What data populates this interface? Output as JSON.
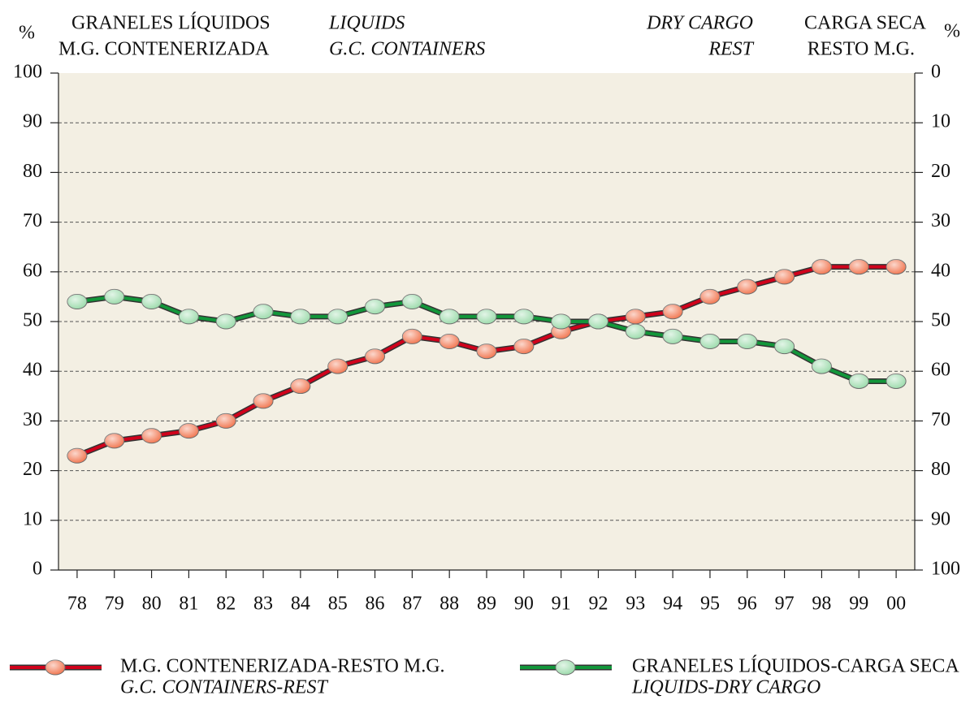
{
  "chart_data": {
    "type": "line",
    "y_label": "%",
    "y2_label": "%",
    "header_left": [
      [
        "GRANELES LÍQUIDOS",
        "LIQUIDS"
      ],
      [
        "M.G. CONTENERIZADA",
        "G.C. CONTAINERS"
      ]
    ],
    "header_right": [
      [
        "DRY CARGO",
        "CARGA SECA"
      ],
      [
        "REST",
        "RESTO M.G."
      ]
    ],
    "categories": [
      "78",
      "79",
      "80",
      "81",
      "82",
      "83",
      "84",
      "85",
      "86",
      "87",
      "88",
      "89",
      "90",
      "91",
      "92",
      "93",
      "94",
      "95",
      "96",
      "97",
      "98",
      "99",
      "00"
    ],
    "series": [
      {
        "name": "M.G. CONTENERIZADA-RESTO M.G.",
        "name_en": "G.C. CONTAINERS-REST",
        "color": "#d0021b",
        "marker_color": "#f27a55",
        "values": [
          23,
          26,
          27,
          28,
          30,
          34,
          37,
          41,
          43,
          47,
          46,
          44,
          45,
          48,
          50,
          51,
          52,
          55,
          57,
          59,
          61,
          61,
          61
        ]
      },
      {
        "name": "GRANELES LÍQUIDOS-CARGA SECA",
        "name_en": "LIQUIDS-DRY CARGO",
        "color": "#12963a",
        "marker_color": "#9fdcae",
        "values": [
          54,
          55,
          54,
          51,
          50,
          52,
          51,
          51,
          53,
          54,
          51,
          51,
          51,
          50,
          50,
          48,
          47,
          46,
          46,
          45,
          41,
          38,
          38
        ]
      }
    ],
    "ylim": [
      0,
      100
    ],
    "yticks": [
      0,
      10,
      20,
      30,
      40,
      50,
      60,
      70,
      80,
      90,
      100
    ],
    "y2lim": [
      100,
      0
    ],
    "y2ticks": [
      0,
      10,
      20,
      30,
      40,
      50,
      60,
      70,
      80,
      90,
      100
    ],
    "grid": true,
    "plot_background": "#f3efe3"
  }
}
